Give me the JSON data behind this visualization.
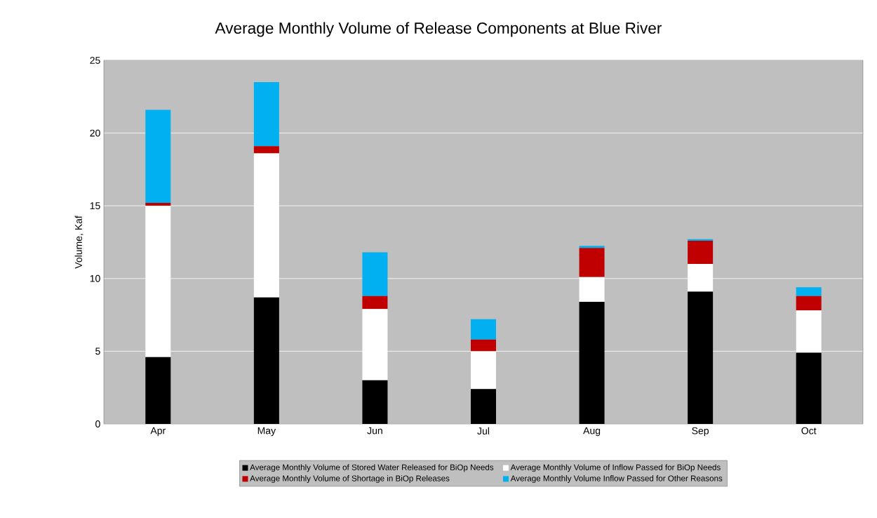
{
  "chart_data": {
    "type": "bar",
    "stacked": true,
    "title": "Average Monthly Volume of Release Components at Blue River",
    "ylabel": "Volume, Kaf",
    "categories": [
      "Apr",
      "May",
      "Jun",
      "Jul",
      "Aug",
      "Sep",
      "Oct"
    ],
    "series": [
      {
        "name": "Average Monthly Volume of Stored Water Released for BiOp Needs",
        "color": "#000000",
        "values": [
          4.6,
          8.7,
          3.0,
          2.4,
          8.4,
          9.1,
          4.9
        ]
      },
      {
        "name": "Average Monthly Volume of Inflow Passed for BiOp Needs",
        "color": "#ffffff",
        "values": [
          10.4,
          9.9,
          4.9,
          2.6,
          1.7,
          1.9,
          2.9
        ]
      },
      {
        "name": "Average Monthly Volume of Shortage in BiOp Releases",
        "color": "#c00000",
        "values": [
          0.2,
          0.5,
          0.9,
          0.8,
          2.0,
          1.6,
          1.0
        ]
      },
      {
        "name": "Average Monthly Volume Inflow Passed for Other Reasons",
        "color": "#00b0f0",
        "values": [
          6.4,
          4.4,
          3.0,
          1.4,
          0.15,
          0.1,
          0.6
        ]
      }
    ],
    "ylim": [
      0,
      25
    ],
    "yticks": [
      0,
      5,
      10,
      15,
      20,
      25
    ],
    "grid": "y",
    "legend": "bottom"
  }
}
